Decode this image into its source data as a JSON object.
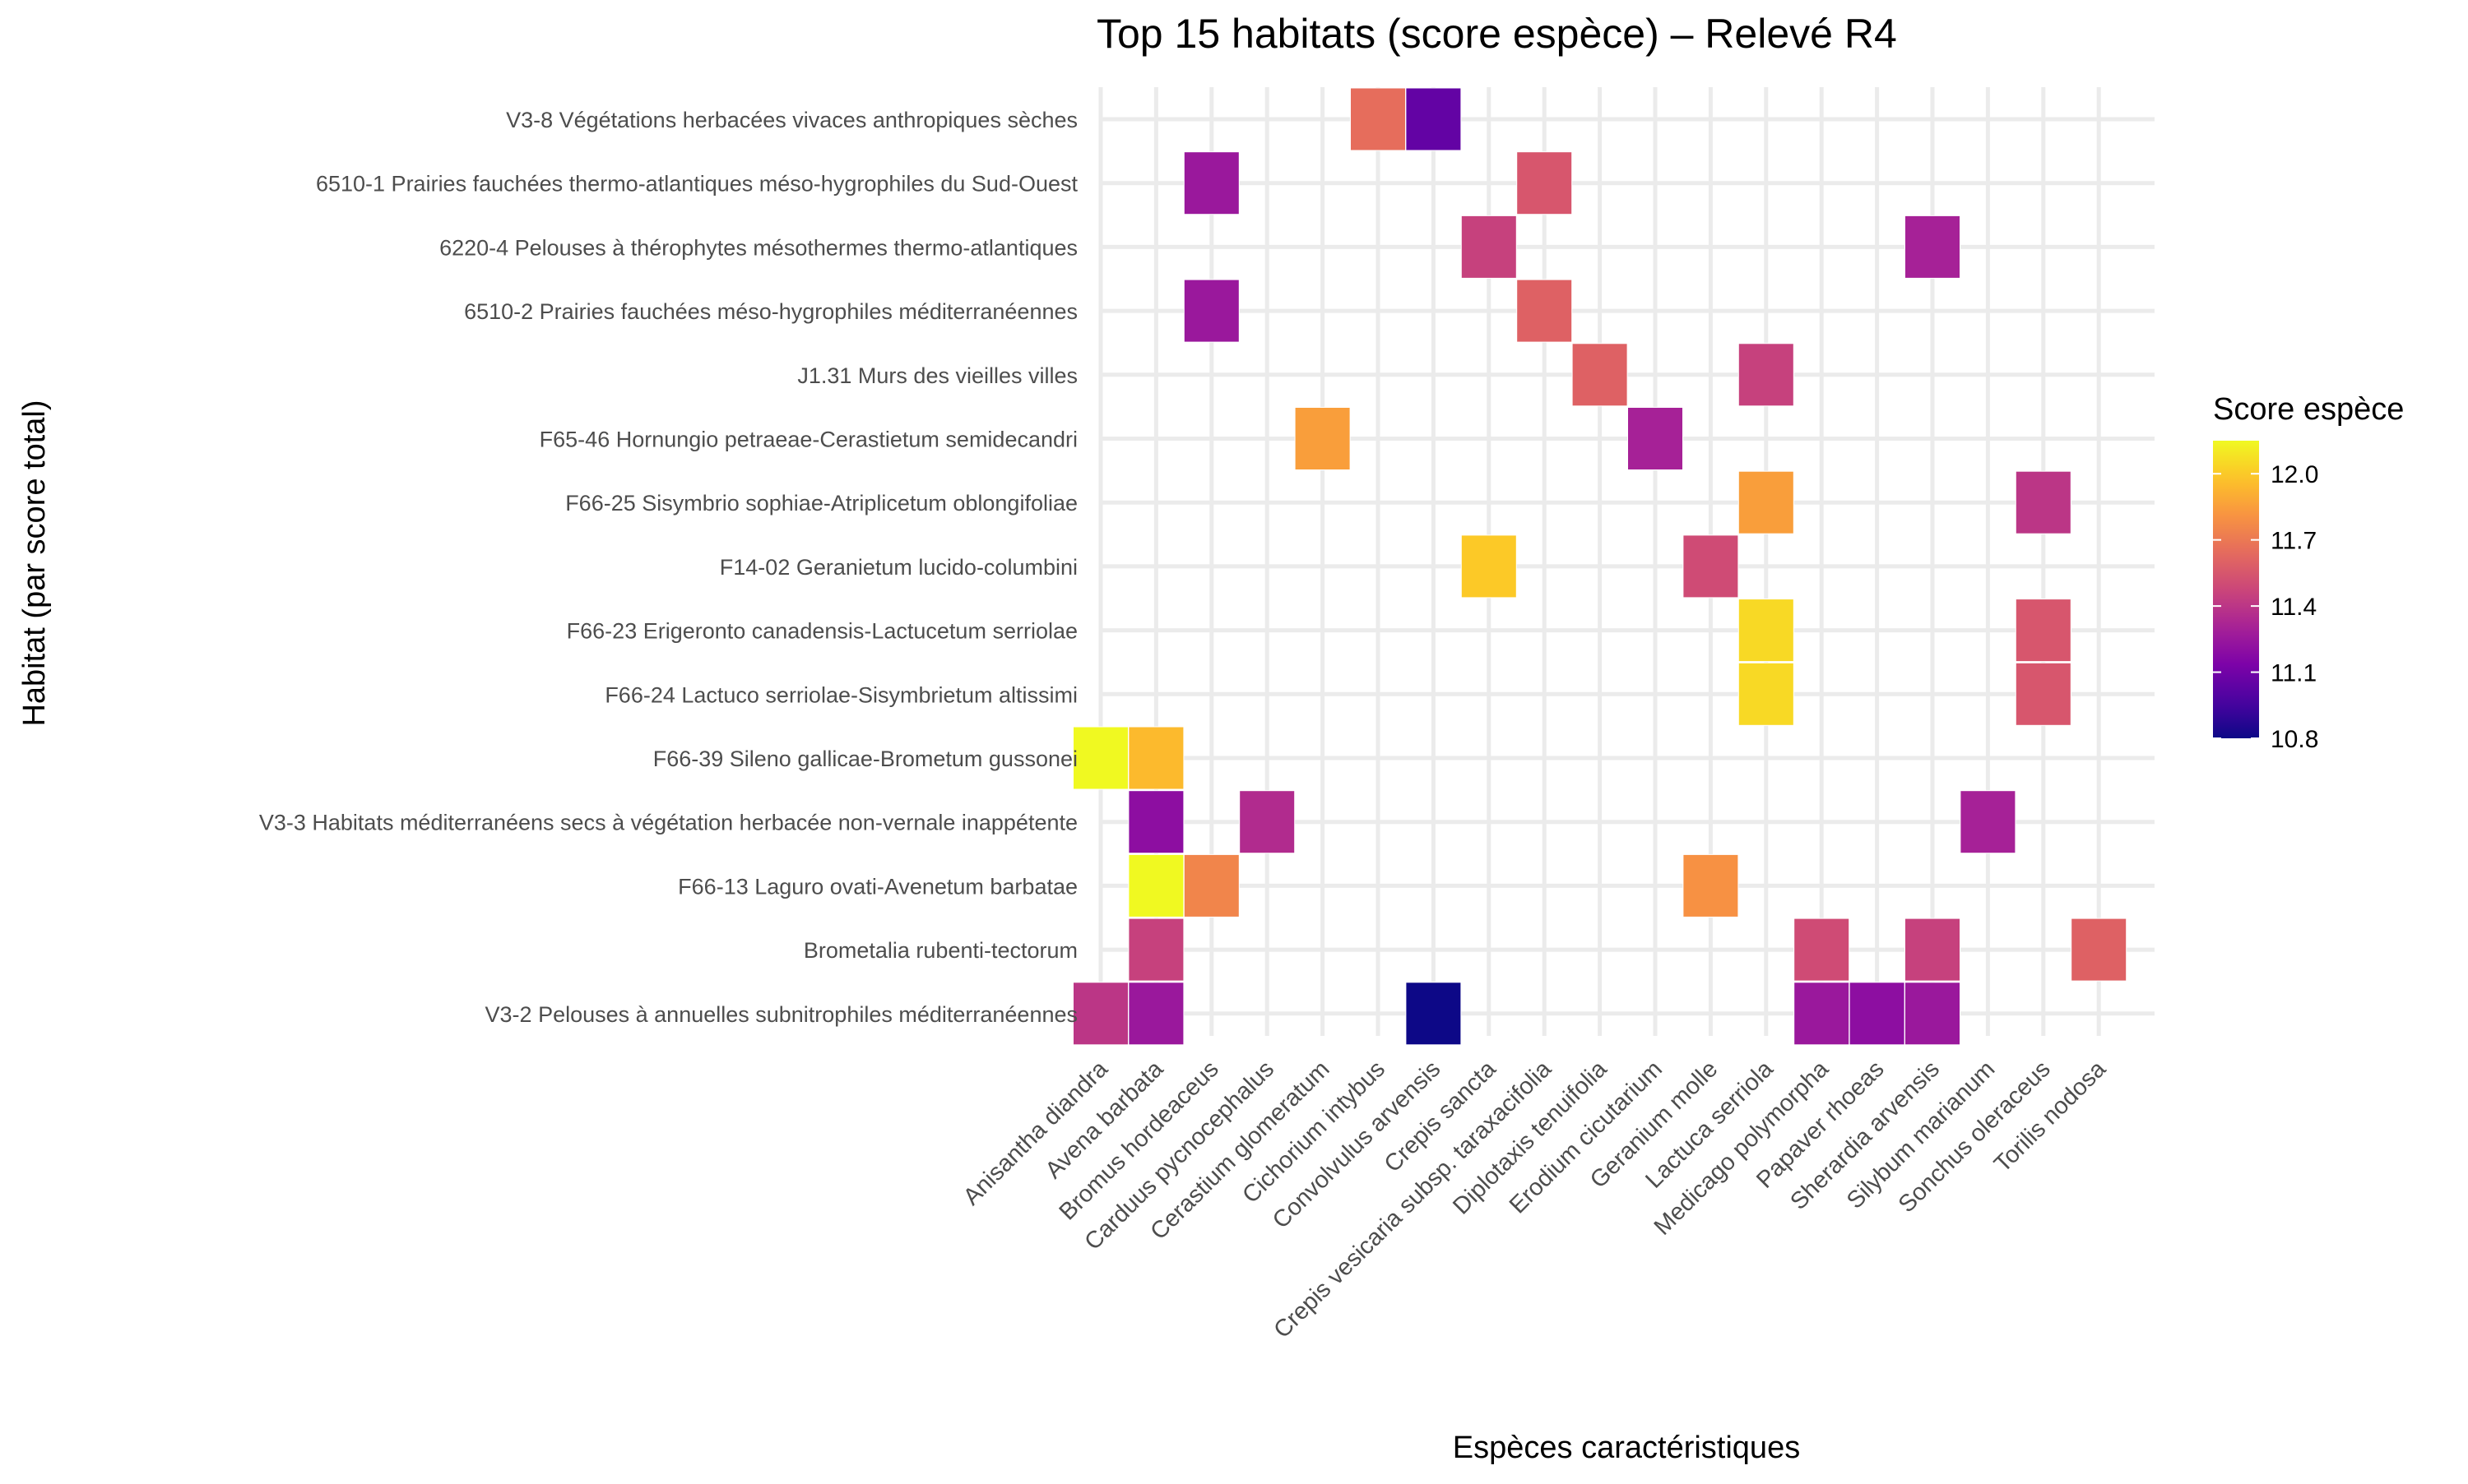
{
  "chart_data": {
    "type": "heatmap",
    "title": "Top 15 habitats (score espèce) – Relevé R4",
    "xlabel": "Espèces caractéristiques",
    "ylabel": "Habitat (par score total)",
    "x_categories": [
      "Anisantha diandra",
      "Avena barbata",
      "Bromus hordeaceus",
      "Carduus pycnocephalus",
      "Cerastium glomeratum",
      "Cichorium intybus",
      "Convolvulus arvensis",
      "Crepis sancta",
      "Crepis vesicaria subsp. taraxacifolia",
      "Diplotaxis tenuifolia",
      "Erodium cicutarium",
      "Geranium molle",
      "Lactuca serriola",
      "Medicago polymorpha",
      "Papaver rhoeas",
      "Sherardia arvensis",
      "Silybum marianum",
      "Sonchus oleraceus",
      "Torilis nodosa"
    ],
    "y_categories": [
      "V3-8 Végétations herbacées vivaces anthropiques sèches",
      "6510-1 Prairies fauchées thermo-atlantiques méso-hygrophiles du Sud-Ouest",
      "6220-4 Pelouses à thérophytes mésothermes thermo-atlantiques",
      "6510-2 Prairies fauchées méso-hygrophiles méditerranéennes",
      "J1.31 Murs des vieilles villes",
      "F65-46 Hornungio petraeae-Cerastietum semidecandri",
      "F66-25 Sisymbrio sophiae-Atriplicetum oblongifoliae",
      "F14-02 Geranietum lucido-columbini",
      "F66-23 Erigeronto canadensis-Lactucetum serriolae",
      "F66-24 Lactuco serriolae-Sisymbrietum altissimi",
      "F66-39 Sileno gallicae-Brometum gussonei",
      "V3-3 Habitats méditerranéens secs à végétation herbacée non-vernale inappétente",
      "F66-13 Laguro ovati-Avenetum barbatae",
      "Brometalia rubenti-tectorum",
      "V3-2 Pelouses à annuelles subnitrophiles méditerranéennes"
    ],
    "cells": [
      {
        "habitat": "V3-8 Végétations herbacées vivaces anthropiques sèches",
        "species": "Cichorium intybus",
        "value": 11.65
      },
      {
        "habitat": "V3-8 Végétations herbacées vivaces anthropiques sèches",
        "species": "Convolvulus arvensis",
        "value": 11.05
      },
      {
        "habitat": "6510-1 Prairies fauchées thermo-atlantiques méso-hygrophiles du Sud-Ouest",
        "species": "Bromus hordeaceus",
        "value": 11.25
      },
      {
        "habitat": "6510-1 Prairies fauchées thermo-atlantiques méso-hygrophiles du Sud-Ouest",
        "species": "Crepis vesicaria subsp. taraxacifolia",
        "value": 11.55
      },
      {
        "habitat": "6220-4 Pelouses à thérophytes mésothermes thermo-atlantiques",
        "species": "Crepis sancta",
        "value": 11.45
      },
      {
        "habitat": "6220-4 Pelouses à thérophytes mésothermes thermo-atlantiques",
        "species": "Sherardia arvensis",
        "value": 11.3
      },
      {
        "habitat": "6510-2 Prairies fauchées méso-hygrophiles méditerranéennes",
        "species": "Bromus hordeaceus",
        "value": 11.25
      },
      {
        "habitat": "6510-2 Prairies fauchées méso-hygrophiles méditerranéennes",
        "species": "Crepis vesicaria subsp. taraxacifolia",
        "value": 11.6
      },
      {
        "habitat": "J1.31 Murs des vieilles villes",
        "species": "Diplotaxis tenuifolia",
        "value": 11.6
      },
      {
        "habitat": "J1.31 Murs des vieilles villes",
        "species": "Lactuca serriola",
        "value": 11.45
      },
      {
        "habitat": "F65-46 Hornungio petraeae-Cerastietum semidecandri",
        "species": "Cerastium glomeratum",
        "value": 11.85
      },
      {
        "habitat": "F65-46 Hornungio petraeae-Cerastietum semidecandri",
        "species": "Erodium cicutarium",
        "value": 11.3
      },
      {
        "habitat": "F66-25 Sisymbrio sophiae-Atriplicetum oblongifoliae",
        "species": "Lactuca serriola",
        "value": 11.85
      },
      {
        "habitat": "F66-25 Sisymbrio sophiae-Atriplicetum oblongifoliae",
        "species": "Sonchus oleraceus",
        "value": 11.4
      },
      {
        "habitat": "F14-02 Geranietum lucido-columbini",
        "species": "Crepis sancta",
        "value": 12.0
      },
      {
        "habitat": "F14-02 Geranietum lucido-columbini",
        "species": "Geranium molle",
        "value": 11.5
      },
      {
        "habitat": "F66-23 Erigeronto canadensis-Lactucetum serriolae",
        "species": "Lactuca serriola",
        "value": 12.05
      },
      {
        "habitat": "F66-23 Erigeronto canadensis-Lactucetum serriolae",
        "species": "Sonchus oleraceus",
        "value": 11.55
      },
      {
        "habitat": "F66-24 Lactuco serriolae-Sisymbrietum altissimi",
        "species": "Lactuca serriola",
        "value": 12.05
      },
      {
        "habitat": "F66-24 Lactuco serriolae-Sisymbrietum altissimi",
        "species": "Sonchus oleraceus",
        "value": 11.55
      },
      {
        "habitat": "F66-39 Sileno gallicae-Brometum gussonei",
        "species": "Anisantha diandra",
        "value": 12.15
      },
      {
        "habitat": "F66-39 Sileno gallicae-Brometum gussonei",
        "species": "Avena barbata",
        "value": 11.95
      },
      {
        "habitat": "V3-3 Habitats méditerranéens secs à végétation herbacée non-vernale inappétente",
        "species": "Avena barbata",
        "value": 11.2
      },
      {
        "habitat": "V3-3 Habitats méditerranéens secs à végétation herbacée non-vernale inappétente",
        "species": "Carduus pycnocephalus",
        "value": 11.35
      },
      {
        "habitat": "V3-3 Habitats méditerranéens secs à végétation herbacée non-vernale inappétente",
        "species": "Silybum marianum",
        "value": 11.3
      },
      {
        "habitat": "F66-13 Laguro ovati-Avenetum barbatae",
        "species": "Avena barbata",
        "value": 12.15
      },
      {
        "habitat": "F66-13 Laguro ovati-Avenetum barbatae",
        "species": "Bromus hordeaceus",
        "value": 11.75
      },
      {
        "habitat": "F66-13 Laguro ovati-Avenetum barbatae",
        "species": "Geranium molle",
        "value": 11.8
      },
      {
        "habitat": "Brometalia rubenti-tectorum",
        "species": "Avena barbata",
        "value": 11.45
      },
      {
        "habitat": "Brometalia rubenti-tectorum",
        "species": "Medicago polymorpha",
        "value": 11.5
      },
      {
        "habitat": "Brometalia rubenti-tectorum",
        "species": "Sherardia arvensis",
        "value": 11.45
      },
      {
        "habitat": "Brometalia rubenti-tectorum",
        "species": "Torilis nodosa",
        "value": 11.6
      },
      {
        "habitat": "V3-2 Pelouses à annuelles subnitrophiles méditerranéennes",
        "species": "Anisantha diandra",
        "value": 11.4
      },
      {
        "habitat": "V3-2 Pelouses à annuelles subnitrophiles méditerranéennes",
        "species": "Avena barbata",
        "value": 11.25
      },
      {
        "habitat": "V3-2 Pelouses à annuelles subnitrophiles méditerranéennes",
        "species": "Convolvulus arvensis",
        "value": 10.8
      },
      {
        "habitat": "V3-2 Pelouses à annuelles subnitrophiles méditerranéennes",
        "species": "Medicago polymorpha",
        "value": 11.25
      },
      {
        "habitat": "V3-2 Pelouses à annuelles subnitrophiles méditerranéennes",
        "species": "Papaver rhoeas",
        "value": 11.2
      },
      {
        "habitat": "V3-2 Pelouses à annuelles subnitrophiles méditerranéennes",
        "species": "Sherardia arvensis",
        "value": 11.25
      }
    ],
    "legend": {
      "title": "Score espèce",
      "position": "right",
      "range": [
        10.8,
        12.15
      ],
      "ticks": [
        10.8,
        11.1,
        11.4,
        11.7,
        12.0
      ],
      "tick_labels": [
        "10.8",
        "11.1",
        "11.4",
        "11.7",
        "12.0"
      ],
      "colormap": "plasma"
    },
    "grid": true
  }
}
